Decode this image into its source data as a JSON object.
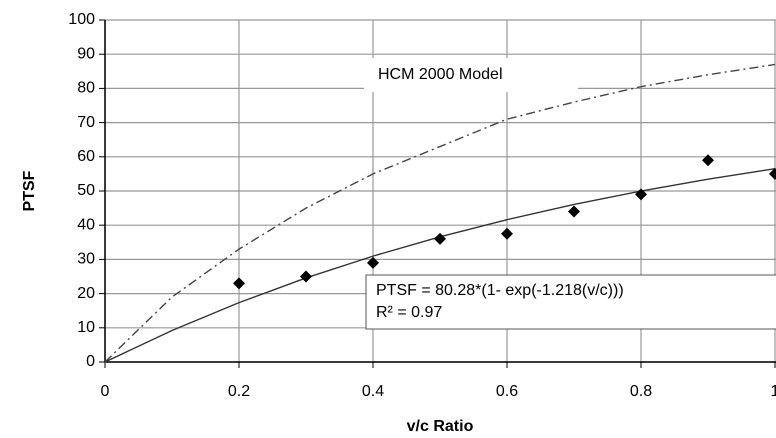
{
  "chart_data": {
    "type": "scatter",
    "x_label": "v/c Ratio",
    "y_label": "PTSF",
    "xlim": [
      0,
      1
    ],
    "ylim": [
      0,
      100
    ],
    "xticks": [
      0,
      0.2,
      0.4,
      0.6,
      0.8,
      1
    ],
    "yticks": [
      0,
      10,
      20,
      30,
      40,
      50,
      60,
      70,
      80,
      90,
      100
    ],
    "grid": true,
    "series": [
      {
        "kind": "scatter",
        "color": "#000000",
        "x": [
          0.2,
          0.3,
          0.4,
          0.5,
          0.6,
          0.7,
          0.8,
          0.9,
          1.0
        ],
        "values": [
          23,
          25,
          29,
          36,
          37.5,
          44,
          49,
          59,
          55
        ]
      },
      {
        "kind": "line",
        "style": "solid",
        "color": "#333333",
        "x": [
          0,
          0.1,
          0.2,
          0.3,
          0.4,
          0.5,
          0.6,
          0.7,
          0.8,
          0.9,
          1.0
        ],
        "values": [
          0,
          9.21,
          17.36,
          24.57,
          30.96,
          36.61,
          41.62,
          46.06,
          49.98,
          53.46,
          56.53
        ]
      },
      {
        "kind": "line",
        "style": "dashdot",
        "color": "#444444",
        "x": [
          0,
          0.1,
          0.2,
          0.3,
          0.4,
          0.5,
          0.6,
          0.7,
          0.8,
          0.9,
          1.0
        ],
        "values": [
          0,
          19,
          33,
          45,
          55,
          63,
          71,
          76,
          80.5,
          84,
          87
        ]
      }
    ],
    "annotations": [
      {
        "text": "HCM 2000 Model"
      },
      {
        "text": "PTSF = 80.28*(1- exp(-1.218(v/c)))"
      },
      {
        "text": "R² = 0.97"
      }
    ]
  }
}
